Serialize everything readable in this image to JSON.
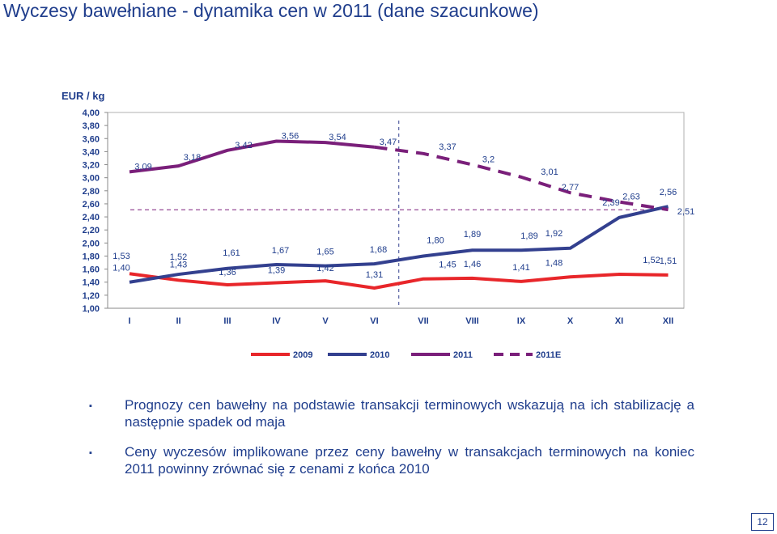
{
  "page": {
    "title": "Wyczesy bawełniane - dynamika cen w 2011 (dane szacunkowe)",
    "unit_label": "EUR / kg",
    "page_number": "12"
  },
  "bullets": [
    "Prognozy cen bawełny na podstawie transakcji terminowych wskazują na ich stabilizację a następnie spadek od maja",
    "Ceny wyczesów implikowane przez ceny bawełny w transakcjach terminowych na koniec 2011 powinny zrównać się z cenami z końca 2010"
  ],
  "chart_data": {
    "type": "line",
    "title": "",
    "ylabel": "EUR / kg",
    "ylim": [
      1.0,
      4.0
    ],
    "y_ticks": [
      "4,00",
      "3,80",
      "3,60",
      "3,40",
      "3,20",
      "3,00",
      "2,80",
      "2,60",
      "2,40",
      "2,20",
      "2,00",
      "1,80",
      "1,60",
      "1,40",
      "1,20",
      "1,00"
    ],
    "categories": [
      "I",
      "II",
      "III",
      "IV",
      "V",
      "VI",
      "VII",
      "VIII",
      "IX",
      "X",
      "XI",
      "XII"
    ],
    "legend": [
      "2009",
      "2010",
      "2011",
      "2011E"
    ],
    "legend_position": "bottom",
    "series": [
      {
        "name": "2009",
        "color": "#e8262a",
        "dash": false,
        "values": [
          1.53,
          1.43,
          1.36,
          1.39,
          1.42,
          1.31,
          1.45,
          1.46,
          1.41,
          1.48,
          1.52,
          1.51
        ],
        "labels": [
          "1,53",
          "1,43",
          "1,36",
          "1,39",
          "1,42",
          "1,31",
          "1,45",
          "1,46",
          "1,41",
          "1,48",
          "1,52",
          "1,51"
        ]
      },
      {
        "name": "2010",
        "color": "#33408f",
        "dash": false,
        "values": [
          1.4,
          1.52,
          1.61,
          1.67,
          1.65,
          1.68,
          1.8,
          1.89,
          1.89,
          1.92,
          2.39,
          2.56
        ],
        "labels": [
          "1,40",
          "1,52",
          "1,61",
          "1,67",
          "1,65",
          "1,68",
          "1,80",
          "1,89",
          "1,89",
          "1,92",
          "2,39",
          "2,56"
        ]
      },
      {
        "name": "2011",
        "color": "#7a1f7a",
        "dash": false,
        "values": [
          3.09,
          3.18,
          3.42,
          3.56,
          3.54,
          3.47,
          null,
          null,
          null,
          null,
          null,
          null
        ],
        "labels": [
          "3,09",
          "3,18",
          "3,42",
          "3,56",
          "3,54",
          "3,47",
          "",
          "",
          "",
          "",
          "",
          ""
        ]
      },
      {
        "name": "2011E",
        "color": "#7a1f7a",
        "dash": true,
        "values": [
          null,
          null,
          null,
          null,
          null,
          3.47,
          3.37,
          3.2,
          3.01,
          2.77,
          2.63,
          2.51
        ],
        "labels": [
          "",
          "",
          "",
          "",
          "",
          "",
          "3,37",
          "3,2",
          "3,01",
          "2,77",
          "2,63",
          "2,51"
        ]
      }
    ],
    "reference_line": {
      "value": 2.51,
      "style": "dashed"
    },
    "forecast_divider_after": "VI"
  }
}
